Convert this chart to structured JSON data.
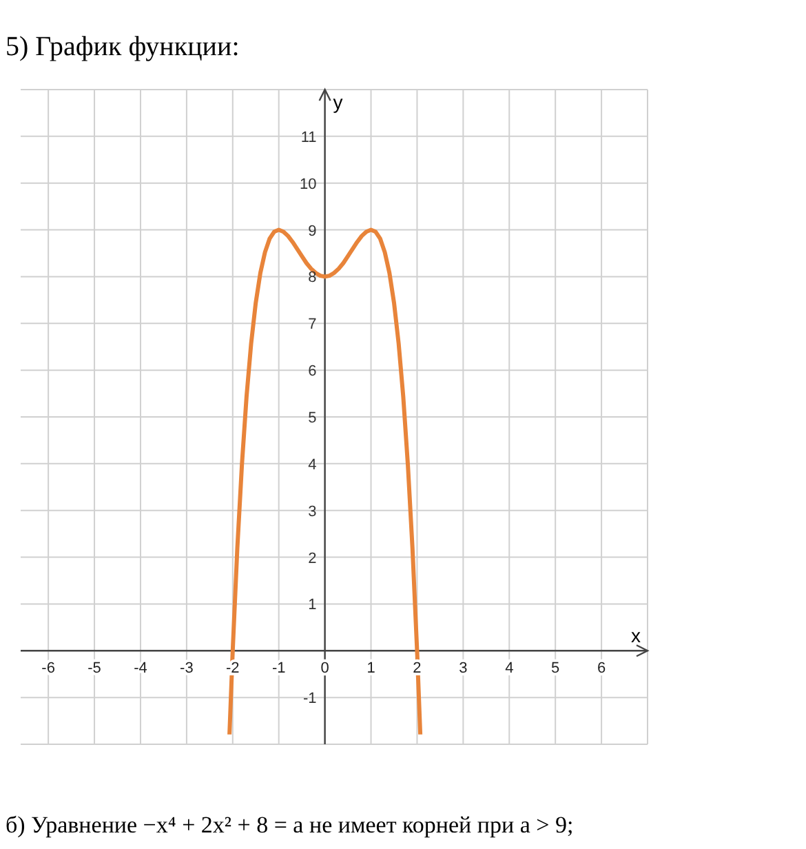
{
  "chart_data": {
    "type": "line",
    "title": "5) График функции:",
    "xlabel": "x",
    "ylabel": "y",
    "annotations": [
      "б) Уравнение −x⁴ + 2x² + 8 = a не имеет корней при a > 9;"
    ],
    "x": [
      -2.07,
      -2,
      -1.9,
      -1.8,
      -1.7,
      -1.6,
      -1.5,
      -1.4,
      -1.3,
      -1.2,
      -1.1,
      -1,
      -0.9,
      -0.8,
      -0.7,
      -0.6,
      -0.5,
      -0.4,
      -0.3,
      -0.2,
      -0.1,
      0,
      0.1,
      0.2,
      0.3,
      0.4,
      0.5,
      0.6,
      0.7,
      0.8,
      0.9,
      1,
      1.1,
      1.2,
      1.3,
      1.4,
      1.5,
      1.6,
      1.7,
      1.8,
      1.9,
      2,
      2.07
    ],
    "series": [
      {
        "color": "#e8843a",
        "values": [
          -1.79,
          0,
          2.19,
          3.98,
          5.43,
          6.57,
          7.44,
          8.08,
          8.52,
          8.81,
          8.96,
          9,
          8.96,
          8.87,
          8.74,
          8.59,
          8.44,
          8.29,
          8.17,
          8.08,
          8.02,
          8,
          8.02,
          8.08,
          8.17,
          8.29,
          8.44,
          8.59,
          8.74,
          8.87,
          8.96,
          9,
          8.96,
          8.81,
          8.52,
          8.08,
          7.44,
          6.57,
          5.43,
          3.98,
          2.19,
          0,
          -1.79
        ]
      }
    ],
    "xlim": [
      -6.6,
      7
    ],
    "ylim": [
      -2,
      12
    ],
    "xticks": [
      -6,
      -5,
      -4,
      -3,
      -2,
      -1,
      0,
      1,
      2,
      3,
      4,
      5,
      6
    ],
    "yticks": [
      -1,
      1,
      2,
      3,
      4,
      5,
      6,
      7,
      8,
      9,
      10,
      11
    ],
    "grid": true,
    "marker": "none",
    "line_style": "solid"
  }
}
